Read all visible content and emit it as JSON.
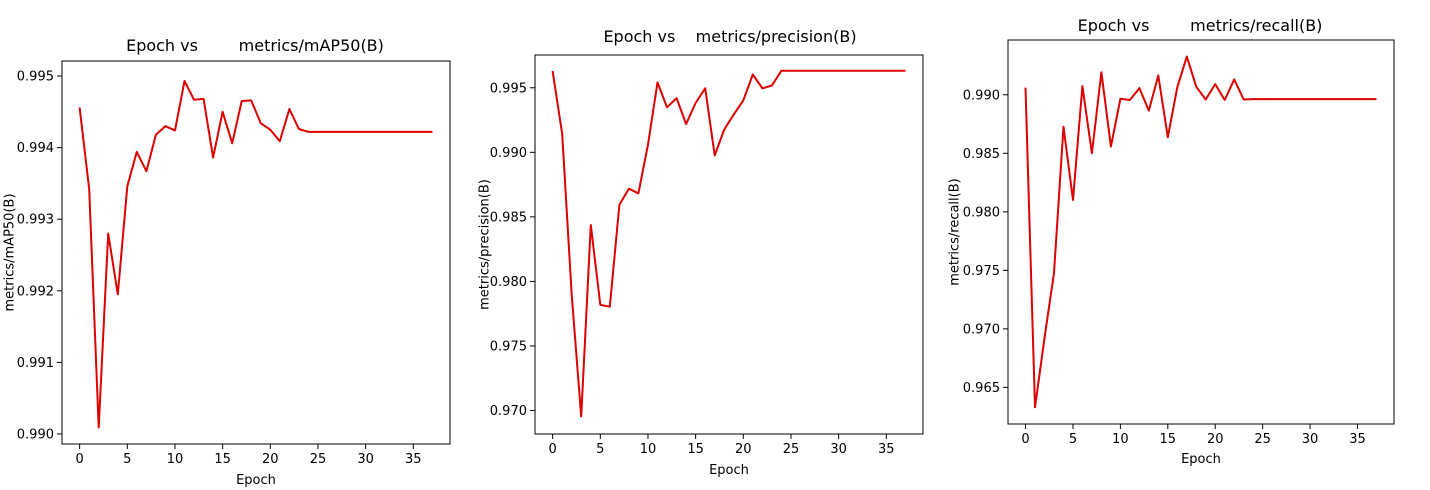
{
  "chart_data": [
    {
      "type": "line",
      "title": "Epoch vs        metrics/mAP50(B)",
      "xlabel": "Epoch",
      "ylabel": "metrics/mAP50(B)",
      "xlim": [
        -1.85,
        38.85
      ],
      "ylim": [
        0.98986,
        0.99521
      ],
      "xticks": [
        0,
        5,
        10,
        15,
        20,
        25,
        30,
        35
      ],
      "yticks": [
        0.99,
        0.991,
        0.992,
        0.993,
        0.994,
        0.995
      ],
      "ytick_decimals": 3,
      "grid": false,
      "color": "#dd0000",
      "series": [
        {
          "x": [
            0,
            1,
            2,
            3,
            4,
            5,
            6,
            7,
            8,
            9,
            10,
            11,
            12,
            13,
            14,
            15,
            16,
            17,
            18,
            19,
            20,
            21,
            22,
            23,
            24,
            25,
            26,
            27,
            28,
            29,
            30,
            31,
            32,
            33,
            34,
            35,
            36,
            37
          ],
          "y": [
            0.99456,
            0.99342,
            0.99009,
            0.9928,
            0.99195,
            0.99346,
            0.99394,
            0.99367,
            0.99418,
            0.9943,
            0.99424,
            0.99493,
            0.99467,
            0.99468,
            0.99386,
            0.9945,
            0.99406,
            0.99465,
            0.99466,
            0.99434,
            0.99425,
            0.99409,
            0.99454,
            0.99426,
            0.99422,
            0.99422,
            0.99422,
            0.99422,
            0.99422,
            0.99422,
            0.99422,
            0.99422,
            0.99422,
            0.99422,
            0.99422,
            0.99422,
            0.99422,
            0.99422
          ]
        }
      ]
    },
    {
      "type": "line",
      "title": "Epoch vs    metrics/precision(B)",
      "xlabel": "Epoch",
      "ylabel": "metrics/precision(B)",
      "xlim": [
        -1.85,
        38.85
      ],
      "ylim": [
        0.96818,
        0.99754
      ],
      "xticks": [
        0,
        5,
        10,
        15,
        20,
        25,
        30,
        35
      ],
      "yticks": [
        0.97,
        0.975,
        0.98,
        0.985,
        0.99,
        0.995
      ],
      "ytick_decimals": 3,
      "grid": false,
      "color": "#dd0000",
      "series": [
        {
          "x": [
            0,
            1,
            2,
            3,
            4,
            5,
            6,
            7,
            8,
            9,
            10,
            11,
            12,
            13,
            14,
            15,
            16,
            17,
            18,
            19,
            20,
            21,
            22,
            23,
            24,
            25,
            26,
            27,
            28,
            29,
            30,
            31,
            32,
            33,
            34,
            35,
            36,
            37
          ],
          "y": [
            0.9963,
            0.99141,
            0.97897,
            0.96954,
            0.98437,
            0.97818,
            0.97804,
            0.98594,
            0.98718,
            0.98683,
            0.9906,
            0.99542,
            0.99349,
            0.9942,
            0.99219,
            0.99382,
            0.99496,
            0.98976,
            0.99176,
            0.99294,
            0.99402,
            0.99603,
            0.99496,
            0.99518,
            0.99632,
            0.99632,
            0.99632,
            0.99632,
            0.99632,
            0.99632,
            0.99632,
            0.99632,
            0.99632,
            0.99632,
            0.99632,
            0.99632,
            0.99632,
            0.99632
          ]
        }
      ]
    },
    {
      "type": "line",
      "title": "Epoch vs        metrics/recall(B)",
      "xlabel": "Epoch",
      "ylabel": "metrics/recall(B)",
      "xlim": [
        -1.85,
        38.85
      ],
      "ylim": [
        0.96187,
        0.99468
      ],
      "xticks": [
        0,
        5,
        10,
        15,
        20,
        25,
        30,
        35
      ],
      "yticks": [
        0.965,
        0.97,
        0.975,
        0.98,
        0.985,
        0.99
      ],
      "ytick_decimals": 3,
      "grid": false,
      "color": "#dd0000",
      "series": [
        {
          "x": [
            0,
            1,
            2,
            3,
            4,
            5,
            6,
            7,
            8,
            9,
            10,
            11,
            12,
            13,
            14,
            15,
            16,
            17,
            18,
            19,
            20,
            21,
            22,
            23,
            24,
            25,
            26,
            27,
            28,
            29,
            30,
            31,
            32,
            33,
            34,
            35,
            36,
            37
          ],
          "y": [
            0.99061,
            0.9633,
            0.96921,
            0.97478,
            0.98726,
            0.98101,
            0.99074,
            0.985,
            0.99193,
            0.98557,
            0.98966,
            0.98955,
            0.99057,
            0.98865,
            0.99165,
            0.98637,
            0.99065,
            0.99326,
            0.99068,
            0.9896,
            0.99091,
            0.98955,
            0.99131,
            0.9896,
            0.98963,
            0.98963,
            0.98963,
            0.98963,
            0.98963,
            0.98963,
            0.98963,
            0.98963,
            0.98963,
            0.98963,
            0.98963,
            0.98963,
            0.98963,
            0.98963
          ]
        }
      ]
    }
  ]
}
